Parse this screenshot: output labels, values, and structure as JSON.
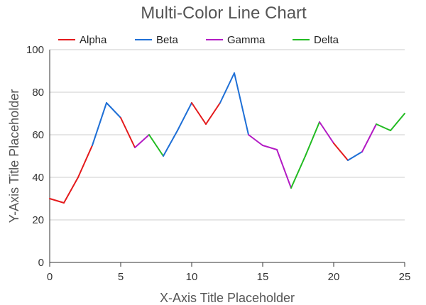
{
  "chart_data": {
    "type": "line",
    "title": "Multi-Color Line Chart",
    "xlabel": "X-Axis Title Placeholder",
    "ylabel": "Y-Axis Title Placeholder",
    "xlim": [
      0,
      25
    ],
    "ylim": [
      0,
      100
    ],
    "x_ticks": [
      "0",
      "5",
      "10",
      "15",
      "20",
      "25"
    ],
    "y_ticks": [
      "0",
      "20",
      "40",
      "60",
      "80",
      "100"
    ],
    "grid": "horizontal",
    "legend_position": "top",
    "series": [
      {
        "name": "Alpha",
        "color": "#e41a1c"
      },
      {
        "name": "Beta",
        "color": "#1e6fd6"
      },
      {
        "name": "Gamma",
        "color": "#b31bc4"
      },
      {
        "name": "Delta",
        "color": "#22bb22"
      }
    ],
    "x": [
      0,
      1,
      2,
      3,
      4,
      5,
      6,
      7,
      8,
      9,
      10,
      11,
      12,
      13,
      14,
      15,
      16,
      17,
      18,
      19,
      20,
      21,
      22,
      23,
      24,
      25
    ],
    "y": [
      30,
      28,
      40,
      55,
      75,
      68,
      54,
      60,
      50,
      62,
      75,
      65,
      75,
      89,
      60,
      55,
      53,
      35,
      50,
      66,
      56,
      48,
      52,
      65,
      62,
      70
    ],
    "segment_series": [
      "Alpha",
      "Alpha",
      "Alpha",
      "Beta",
      "Beta",
      "Alpha",
      "Gamma",
      "Delta",
      "Beta",
      "Beta",
      "Alpha",
      "Alpha",
      "Beta",
      "Beta",
      "Gamma",
      "Gamma",
      "Gamma",
      "Delta",
      "Delta",
      "Gamma",
      "Alpha",
      "Beta",
      "Gamma",
      "Delta",
      "Delta"
    ]
  }
}
